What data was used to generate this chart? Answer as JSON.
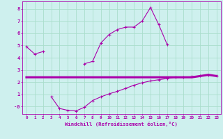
{
  "xlabel": "Windchill (Refroidissement éolien,°C)",
  "background_color": "#cef0ee",
  "grid_color": "#aaddcc",
  "line_color": "#aa00aa",
  "x": [
    0,
    1,
    2,
    3,
    4,
    5,
    6,
    7,
    8,
    9,
    10,
    11,
    12,
    13,
    14,
    15,
    16,
    17,
    18,
    19,
    20,
    21,
    22,
    23
  ],
  "temp": [
    4.9,
    4.3,
    4.5,
    null,
    null,
    null,
    null,
    3.5,
    3.7,
    5.2,
    5.9,
    6.3,
    6.5,
    6.5,
    7.0,
    8.1,
    6.7,
    5.1,
    null,
    null,
    null,
    null,
    null,
    null
  ],
  "windchill": [
    null,
    null,
    null,
    0.8,
    -0.15,
    -0.3,
    -0.35,
    -0.05,
    0.5,
    0.8,
    1.05,
    1.25,
    1.5,
    1.75,
    1.95,
    2.1,
    2.2,
    2.3,
    2.4,
    2.4,
    2.45,
    2.5,
    2.6,
    2.5
  ],
  "mean": [
    2.4,
    2.4,
    2.4,
    2.4,
    2.4,
    2.4,
    2.4,
    2.4,
    2.4,
    2.4,
    2.4,
    2.4,
    2.4,
    2.4,
    2.4,
    2.4,
    2.4,
    2.4,
    2.4,
    2.4,
    2.4,
    2.5,
    2.6,
    2.5
  ],
  "ylim": [
    -0.6,
    8.6
  ],
  "xlim": [
    -0.5,
    23.5
  ],
  "yticks": [
    0,
    1,
    2,
    3,
    4,
    5,
    6,
    7,
    8
  ],
  "ytick_labels": [
    "-0",
    "1",
    "2",
    "3",
    "4",
    "5",
    "6",
    "7",
    "8"
  ]
}
